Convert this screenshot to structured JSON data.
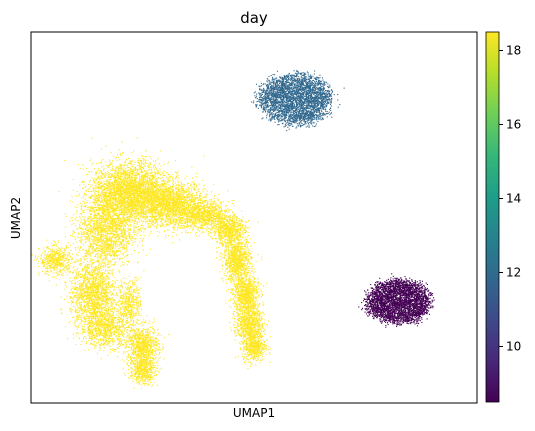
{
  "chart_data": {
    "type": "scatter",
    "title": "day",
    "xlabel": "UMAP1",
    "ylabel": "UMAP2",
    "x_ticks": "none",
    "y_ticks": "none",
    "grid": false,
    "colorbar": {
      "label": "",
      "colormap": "viridis",
      "range": [
        8.5,
        18.5
      ],
      "ticks": [
        "10",
        "12",
        "14",
        "16",
        "18"
      ],
      "tick_values": [
        10,
        12,
        14,
        16,
        18
      ],
      "stops": [
        "#440154",
        "#482878",
        "#3e4a89",
        "#31688e",
        "#26828e",
        "#1f9e89",
        "#35b779",
        "#6ece58",
        "#b5de2b",
        "#fde725"
      ]
    },
    "clusters": [
      {
        "day": 9,
        "color": "#440154",
        "shape": "round blob",
        "umap1_center": 7.7,
        "umap2_center": 2.4,
        "umap1_spread": 0.8,
        "umap2_spread": 0.6
      },
      {
        "day": 11.5,
        "color": "#31688e",
        "shape": "round blob",
        "umap1_center": 5.2,
        "umap2_center": 7.8,
        "umap1_spread": 0.9,
        "umap2_spread": 0.7
      },
      {
        "day": 18.5,
        "color": "#fde725",
        "shape": "large curved manifold",
        "umap1_center": 2.2,
        "umap2_center": 3.8,
        "umap1_spread": 2.5,
        "umap2_spread": 2.4
      }
    ]
  }
}
